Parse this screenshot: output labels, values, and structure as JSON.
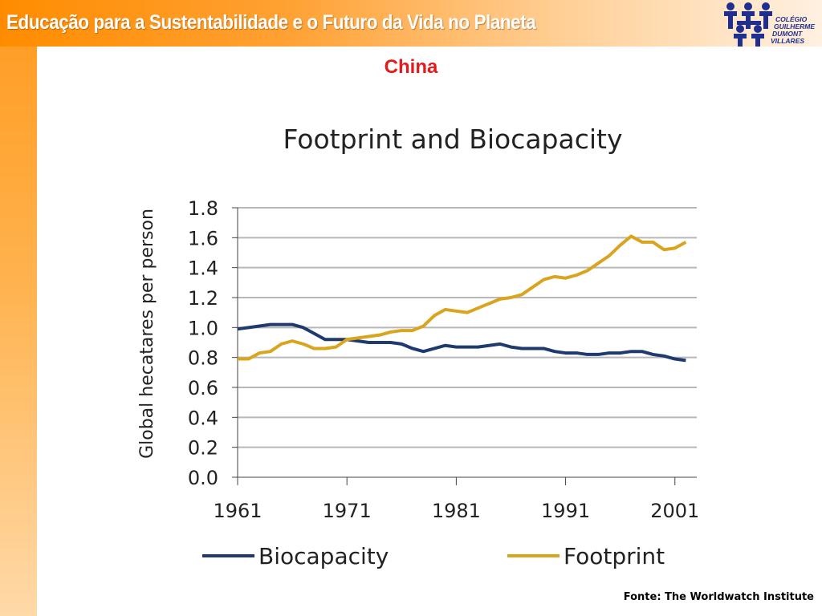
{
  "header": {
    "title": "Educação para a Sustentabilidade e o Futuro da Vida no Planeta"
  },
  "logo": {
    "text_lines": [
      "COLÉGIO",
      "GUILHERME",
      "DUMONT",
      "VILLARES"
    ]
  },
  "slide": {
    "subtitle": "China"
  },
  "source": "Fonte: The Worldwatch Institute",
  "colors": {
    "biocapacity": "#1f3a6e",
    "footprint": "#d9a41e",
    "subtitle": "#e31b1b",
    "accent": "#ff9a1f"
  },
  "chart_data": {
    "type": "line",
    "title": "Footprint and Biocapacity",
    "xlabel": "",
    "ylabel": "Global hecatares per person",
    "xlim": [
      1961,
      2003
    ],
    "ylim": [
      0,
      1.8
    ],
    "x_ticks": [
      "1961",
      "1971",
      "1981",
      "1991",
      "2001"
    ],
    "y_ticks": [
      "0.0",
      "0.2",
      "0.4",
      "0.6",
      "0.8",
      "1.0",
      "1.2",
      "1.4",
      "1.6",
      "1.8"
    ],
    "grid": true,
    "legend_position": "bottom",
    "x": [
      1961,
      1962,
      1963,
      1964,
      1965,
      1966,
      1967,
      1968,
      1969,
      1970,
      1971,
      1972,
      1973,
      1974,
      1975,
      1976,
      1977,
      1978,
      1979,
      1980,
      1981,
      1982,
      1983,
      1984,
      1985,
      1986,
      1987,
      1988,
      1989,
      1990,
      1991,
      1992,
      1993,
      1994,
      1995,
      1996,
      1997,
      1998,
      1999,
      2000,
      2001,
      2002
    ],
    "series": [
      {
        "name": "Biocapacity",
        "values": [
          0.99,
          1.0,
          1.01,
          1.02,
          1.02,
          1.02,
          1.0,
          0.96,
          0.92,
          0.92,
          0.92,
          0.91,
          0.9,
          0.9,
          0.9,
          0.89,
          0.86,
          0.84,
          0.86,
          0.88,
          0.87,
          0.87,
          0.87,
          0.88,
          0.89,
          0.87,
          0.86,
          0.86,
          0.86,
          0.84,
          0.83,
          0.83,
          0.82,
          0.82,
          0.83,
          0.83,
          0.84,
          0.84,
          0.82,
          0.81,
          0.79,
          0.78
        ]
      },
      {
        "name": "Footprint",
        "values": [
          0.79,
          0.79,
          0.83,
          0.84,
          0.89,
          0.91,
          0.89,
          0.86,
          0.86,
          0.87,
          0.92,
          0.93,
          0.94,
          0.95,
          0.97,
          0.98,
          0.98,
          1.01,
          1.08,
          1.12,
          1.11,
          1.1,
          1.13,
          1.16,
          1.19,
          1.2,
          1.22,
          1.27,
          1.32,
          1.34,
          1.33,
          1.35,
          1.38,
          1.43,
          1.48,
          1.55,
          1.61,
          1.57,
          1.57,
          1.52,
          1.53,
          1.57
        ]
      }
    ]
  }
}
